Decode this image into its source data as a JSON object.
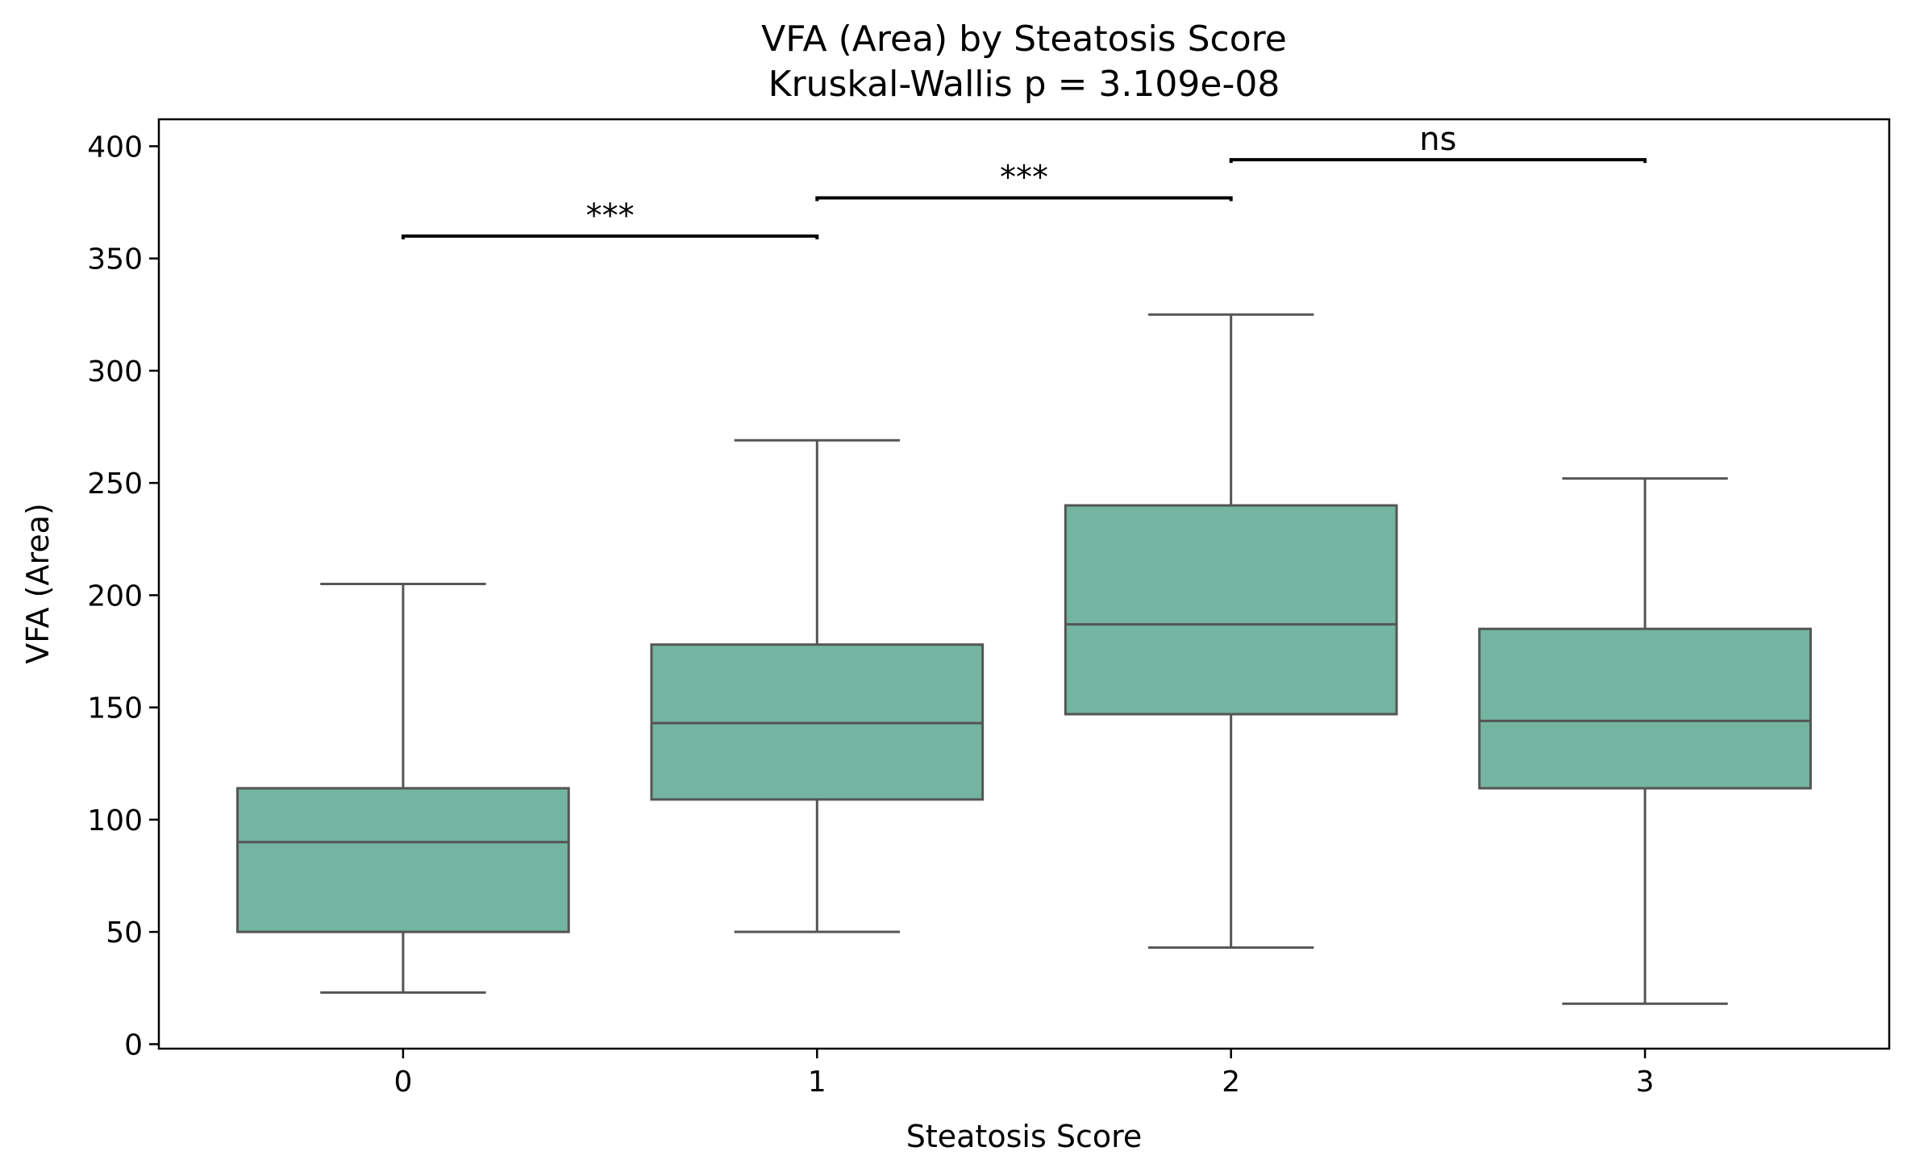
{
  "chart_data": {
    "type": "box",
    "title": "VFA (Area) by Steatosis Score",
    "subtitle": "Kruskal-Wallis p = 3.109e-08",
    "xlabel": "Steatosis Score",
    "ylabel": "VFA (Area)",
    "ylim": [
      -2,
      412
    ],
    "yticks": [
      0,
      50,
      100,
      150,
      200,
      250,
      300,
      350,
      400
    ],
    "categories": [
      "0",
      "1",
      "2",
      "3"
    ],
    "box_color": "#73b5a0",
    "line_color": "#555555",
    "boxes": [
      {
        "category": "0",
        "whisker_low": 23,
        "q1": 50,
        "median": 90,
        "q3": 114,
        "whisker_high": 205
      },
      {
        "category": "1",
        "whisker_low": 50,
        "q1": 109,
        "median": 143,
        "q3": 178,
        "whisker_high": 269
      },
      {
        "category": "2",
        "whisker_low": 43,
        "q1": 147,
        "median": 187,
        "q3": 240,
        "whisker_high": 325
      },
      {
        "category": "3",
        "whisker_low": 18,
        "q1": 114,
        "median": 144,
        "q3": 185,
        "whisker_high": 252
      }
    ],
    "comparisons": [
      {
        "from": "0",
        "to": "1",
        "y": 360,
        "label": "***"
      },
      {
        "from": "1",
        "to": "2",
        "y": 377,
        "label": "***"
      },
      {
        "from": "2",
        "to": "3",
        "y": 394,
        "label": "ns"
      }
    ]
  }
}
